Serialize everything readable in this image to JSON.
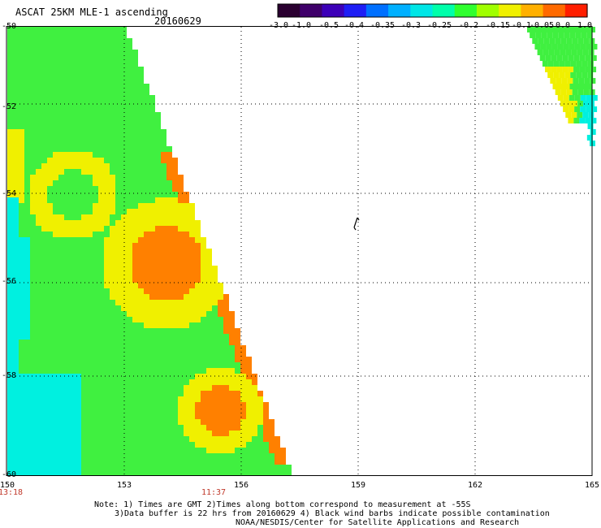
{
  "header": {
    "title": "ASCAT 25KM MLE-1 ascending",
    "date": "20160629"
  },
  "colorbar": {
    "labels": [
      "-3.0",
      "-1.0",
      "-0.5",
      "-0.4",
      "-0.35",
      "-0.3",
      "-0.25",
      "-0.2",
      "-0.15",
      "-0.1",
      "-0.05",
      "0.0",
      "1.0"
    ],
    "colors": [
      "#2a0030",
      "#3f006a",
      "#3c00b8",
      "#1e1ef5",
      "#0070ff",
      "#00b0ff",
      "#00e6e6",
      "#00ffaa",
      "#2fff2f",
      "#a0ff00",
      "#f0f000",
      "#ffb000",
      "#ff6a00",
      "#ff1e00"
    ]
  },
  "axes": {
    "lat_labels": [
      "-50",
      "-52",
      "-54",
      "-56",
      "-58",
      "-60"
    ],
    "lon_labels": [
      "150",
      "153",
      "156",
      "159",
      "162",
      "165"
    ]
  },
  "times": {
    "left": "13:18",
    "right": "11:37"
  },
  "notes": {
    "line1": "Note: 1) Times are GMT 2)Times along bottom correspond to measurement at -55S",
    "line2": "3)Data buffer is 22 hrs from 20160629 4) Black wind barbs indicate possible contamination",
    "line3": "NOAA/NESDIS/Center for Satellite Applications and Research"
  },
  "map_colors": {
    "cyan": "#00f0e0",
    "green": "#40f040",
    "yellow": "#f0f000",
    "orange": "#ff8000"
  }
}
